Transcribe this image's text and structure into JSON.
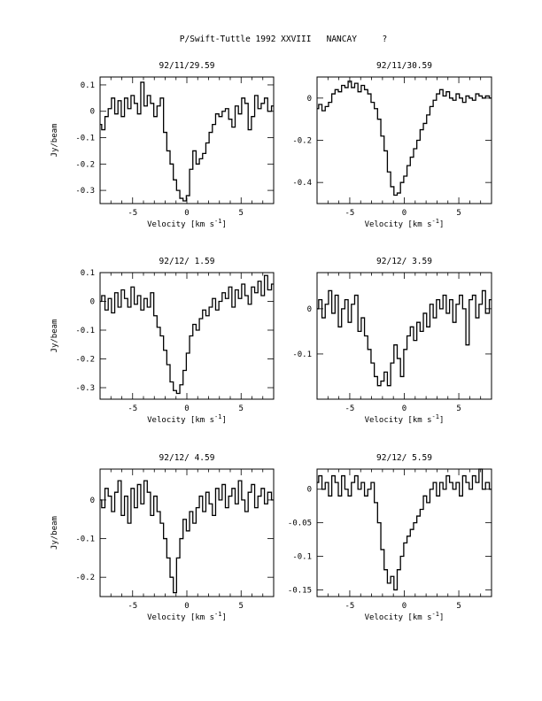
{
  "figure_title": "P/Swift-Tuttle 1992 XXVIII   NANCAY     ?",
  "chart_data": [
    {
      "type": "line",
      "title": "92/11/29.59",
      "xlabel": "Velocity [km s",
      "xlabel_sup": "-1",
      "xlabel_close": "]",
      "ylabel": "Jy/beam",
      "xlim": [
        -8,
        8
      ],
      "ylim": [
        -0.35,
        0.13
      ],
      "xticks": [
        -5,
        0,
        5
      ],
      "yticks": [
        0.1,
        0,
        -0.1,
        -0.2,
        -0.3
      ],
      "yticklabels": [
        "0.1",
        "0",
        "-0.1",
        "-0.2",
        "-0.3"
      ],
      "x": [
        -8.0,
        -7.7,
        -7.4,
        -7.1,
        -6.8,
        -6.5,
        -6.2,
        -5.9,
        -5.6,
        -5.3,
        -5.0,
        -4.7,
        -4.4,
        -4.1,
        -3.8,
        -3.5,
        -3.2,
        -2.9,
        -2.6,
        -2.3,
        -2.0,
        -1.7,
        -1.4,
        -1.1,
        -0.8,
        -0.5,
        -0.2,
        0.1,
        0.4,
        0.7,
        1.0,
        1.3,
        1.6,
        1.9,
        2.2,
        2.5,
        2.8,
        3.1,
        3.4,
        3.7,
        4.0,
        4.3,
        4.6,
        4.9,
        5.2,
        5.5,
        5.8,
        6.1,
        6.4,
        6.7,
        7.0,
        7.3,
        7.6,
        8.0
      ],
      "y": [
        -0.05,
        -0.07,
        -0.02,
        0.01,
        0.05,
        -0.01,
        0.04,
        -0.02,
        0.05,
        0.01,
        0.06,
        0.03,
        -0.01,
        0.11,
        0.02,
        0.06,
        0.03,
        -0.02,
        0.02,
        0.05,
        -0.08,
        -0.15,
        -0.2,
        -0.26,
        -0.3,
        -0.33,
        -0.34,
        -0.32,
        -0.22,
        -0.15,
        -0.2,
        -0.18,
        -0.16,
        -0.12,
        -0.08,
        -0.05,
        -0.01,
        -0.02,
        0.0,
        0.01,
        -0.03,
        -0.06,
        0.02,
        -0.01,
        0.05,
        0.03,
        -0.07,
        -0.02,
        0.06,
        0.01,
        0.03,
        0.05,
        0.0,
        0.02
      ]
    },
    {
      "type": "line",
      "title": "92/11/30.59",
      "xlabel": "Velocity [km s",
      "xlabel_sup": "-1",
      "xlabel_close": "]",
      "ylabel": "",
      "xlim": [
        -8,
        8
      ],
      "ylim": [
        -0.5,
        0.1
      ],
      "xticks": [
        -5,
        0,
        5
      ],
      "yticks": [
        0,
        -0.2,
        -0.4
      ],
      "yticklabels": [
        "0",
        "-0.2",
        "-0.4"
      ],
      "x": [
        -8.0,
        -7.7,
        -7.4,
        -7.1,
        -6.8,
        -6.5,
        -6.2,
        -5.9,
        -5.6,
        -5.3,
        -5.0,
        -4.7,
        -4.4,
        -4.1,
        -3.8,
        -3.5,
        -3.2,
        -2.9,
        -2.6,
        -2.3,
        -2.0,
        -1.7,
        -1.4,
        -1.1,
        -0.8,
        -0.5,
        -0.2,
        0.1,
        0.4,
        0.7,
        1.0,
        1.3,
        1.6,
        1.9,
        2.2,
        2.5,
        2.8,
        3.1,
        3.4,
        3.7,
        4.0,
        4.3,
        4.6,
        4.9,
        5.2,
        5.5,
        5.8,
        6.1,
        6.4,
        6.7,
        7.0,
        7.3,
        7.6,
        8.0
      ],
      "y": [
        -0.05,
        -0.03,
        -0.06,
        -0.04,
        -0.02,
        0.02,
        0.04,
        0.03,
        0.06,
        0.05,
        0.08,
        0.05,
        0.07,
        0.03,
        0.06,
        0.04,
        0.02,
        -0.02,
        -0.05,
        -0.1,
        -0.18,
        -0.25,
        -0.35,
        -0.42,
        -0.46,
        -0.45,
        -0.4,
        -0.37,
        -0.32,
        -0.28,
        -0.24,
        -0.2,
        -0.15,
        -0.12,
        -0.08,
        -0.04,
        -0.01,
        0.02,
        0.04,
        0.01,
        0.03,
        0.0,
        -0.01,
        0.02,
        0.0,
        -0.02,
        0.01,
        0.0,
        -0.01,
        0.02,
        0.01,
        0.0,
        0.01,
        0.0
      ]
    },
    {
      "type": "line",
      "title": "92/12/ 1.59",
      "xlabel": "Velocity [km s",
      "xlabel_sup": "-1",
      "xlabel_close": "]",
      "ylabel": "Jy/beam",
      "xlim": [
        -8,
        8
      ],
      "ylim": [
        -0.34,
        0.1
      ],
      "xticks": [
        -5,
        0,
        5
      ],
      "yticks": [
        0.1,
        0,
        -0.1,
        -0.2,
        -0.3
      ],
      "yticklabels": [
        "0.1",
        "0",
        "-0.1",
        "-0.2",
        "-0.3"
      ],
      "x": [
        -8.0,
        -7.7,
        -7.4,
        -7.1,
        -6.8,
        -6.5,
        -6.2,
        -5.9,
        -5.6,
        -5.3,
        -5.0,
        -4.7,
        -4.4,
        -4.1,
        -3.8,
        -3.5,
        -3.2,
        -2.9,
        -2.6,
        -2.3,
        -2.0,
        -1.7,
        -1.4,
        -1.1,
        -0.8,
        -0.5,
        -0.2,
        0.1,
        0.4,
        0.7,
        1.0,
        1.3,
        1.6,
        1.9,
        2.2,
        2.5,
        2.8,
        3.1,
        3.4,
        3.7,
        4.0,
        4.3,
        4.6,
        4.9,
        5.2,
        5.5,
        5.8,
        6.1,
        6.4,
        6.7,
        7.0,
        7.3,
        7.6,
        8.0
      ],
      "y": [
        0.0,
        0.02,
        -0.03,
        0.01,
        -0.04,
        0.03,
        -0.02,
        0.04,
        0.01,
        -0.02,
        0.05,
        -0.01,
        0.02,
        -0.03,
        0.01,
        -0.02,
        0.03,
        -0.05,
        -0.09,
        -0.12,
        -0.17,
        -0.22,
        -0.28,
        -0.31,
        -0.32,
        -0.29,
        -0.24,
        -0.18,
        -0.12,
        -0.08,
        -0.1,
        -0.06,
        -0.03,
        -0.05,
        -0.02,
        0.01,
        -0.03,
        0.0,
        0.03,
        0.01,
        0.05,
        -0.02,
        0.04,
        0.01,
        0.06,
        0.02,
        -0.01,
        0.05,
        0.03,
        0.07,
        0.02,
        0.09,
        0.04,
        0.06
      ]
    },
    {
      "type": "line",
      "title": "92/12/ 3.59",
      "xlabel": "Velocity [km s",
      "xlabel_sup": "-1",
      "xlabel_close": "]",
      "ylabel": "",
      "xlim": [
        -8,
        8
      ],
      "ylim": [
        -0.2,
        0.08
      ],
      "xticks": [
        -5,
        0,
        5
      ],
      "yticks": [
        0,
        -0.1
      ],
      "yticklabels": [
        "0",
        "-0.1"
      ],
      "x": [
        -8.0,
        -7.7,
        -7.4,
        -7.1,
        -6.8,
        -6.5,
        -6.2,
        -5.9,
        -5.6,
        -5.3,
        -5.0,
        -4.7,
        -4.4,
        -4.1,
        -3.8,
        -3.5,
        -3.2,
        -2.9,
        -2.6,
        -2.3,
        -2.0,
        -1.7,
        -1.4,
        -1.1,
        -0.8,
        -0.5,
        -0.2,
        0.1,
        0.4,
        0.7,
        1.0,
        1.3,
        1.6,
        1.9,
        2.2,
        2.5,
        2.8,
        3.1,
        3.4,
        3.7,
        4.0,
        4.3,
        4.6,
        4.9,
        5.2,
        5.5,
        5.8,
        6.1,
        6.4,
        6.7,
        7.0,
        7.3,
        7.6,
        8.0
      ],
      "y": [
        0.0,
        0.02,
        -0.02,
        0.01,
        0.04,
        -0.01,
        0.03,
        -0.04,
        0.0,
        0.02,
        -0.03,
        0.01,
        0.03,
        -0.05,
        -0.02,
        -0.06,
        -0.09,
        -0.12,
        -0.15,
        -0.17,
        -0.16,
        -0.14,
        -0.17,
        -0.12,
        -0.08,
        -0.11,
        -0.15,
        -0.09,
        -0.06,
        -0.04,
        -0.07,
        -0.03,
        -0.05,
        -0.01,
        -0.04,
        0.01,
        -0.02,
        0.02,
        0.0,
        0.03,
        -0.01,
        0.02,
        -0.03,
        0.01,
        0.03,
        0.0,
        -0.08,
        0.02,
        0.03,
        -0.02,
        0.01,
        0.04,
        -0.01,
        0.02
      ]
    },
    {
      "type": "line",
      "title": "92/12/ 4.59",
      "xlabel": "Velocity [km s",
      "xlabel_sup": "-1",
      "xlabel_close": "]",
      "ylabel": "Jy/beam",
      "xlim": [
        -8,
        8
      ],
      "ylim": [
        -0.25,
        0.08
      ],
      "xticks": [
        -5,
        0,
        5
      ],
      "yticks": [
        0,
        -0.1,
        -0.2
      ],
      "yticklabels": [
        "0",
        "-0.1",
        "-0.2"
      ],
      "x": [
        -8.0,
        -7.7,
        -7.4,
        -7.1,
        -6.8,
        -6.5,
        -6.2,
        -5.9,
        -5.6,
        -5.3,
        -5.0,
        -4.7,
        -4.4,
        -4.1,
        -3.8,
        -3.5,
        -3.2,
        -2.9,
        -2.6,
        -2.3,
        -2.0,
        -1.7,
        -1.4,
        -1.1,
        -0.8,
        -0.5,
        -0.2,
        0.1,
        0.4,
        0.7,
        1.0,
        1.3,
        1.6,
        1.9,
        2.2,
        2.5,
        2.8,
        3.1,
        3.4,
        3.7,
        4.0,
        4.3,
        4.6,
        4.9,
        5.2,
        5.5,
        5.8,
        6.1,
        6.4,
        6.7,
        7.0,
        7.3,
        7.6,
        8.0
      ],
      "y": [
        0.0,
        -0.02,
        0.03,
        0.01,
        -0.03,
        0.02,
        0.05,
        -0.04,
        0.01,
        -0.06,
        0.03,
        -0.02,
        0.04,
        -0.01,
        0.05,
        0.02,
        -0.04,
        0.01,
        -0.03,
        -0.06,
        -0.1,
        -0.15,
        -0.2,
        -0.24,
        -0.15,
        -0.1,
        -0.05,
        -0.08,
        -0.03,
        -0.06,
        -0.02,
        0.01,
        -0.03,
        0.02,
        -0.01,
        -0.04,
        0.03,
        0.0,
        0.04,
        -0.02,
        0.01,
        0.03,
        -0.01,
        0.05,
        0.0,
        -0.03,
        0.02,
        0.04,
        -0.02,
        0.01,
        0.03,
        -0.01,
        0.02,
        0.0
      ]
    },
    {
      "type": "line",
      "title": "92/12/ 5.59",
      "xlabel": "Velocity [km s",
      "xlabel_sup": "-1",
      "xlabel_close": "]",
      "ylabel": "",
      "xlim": [
        -8,
        8
      ],
      "ylim": [
        -0.16,
        0.03
      ],
      "xticks": [
        -5,
        0,
        5
      ],
      "yticks": [
        0,
        -0.05,
        -0.1,
        -0.15
      ],
      "yticklabels": [
        "0",
        "-0.05",
        "-0.1",
        "-0.15"
      ],
      "x": [
        -8.0,
        -7.7,
        -7.4,
        -7.1,
        -6.8,
        -6.5,
        -6.2,
        -5.9,
        -5.6,
        -5.3,
        -5.0,
        -4.7,
        -4.4,
        -4.1,
        -3.8,
        -3.5,
        -3.2,
        -2.9,
        -2.6,
        -2.3,
        -2.0,
        -1.7,
        -1.4,
        -1.1,
        -0.8,
        -0.5,
        -0.2,
        0.1,
        0.4,
        0.7,
        1.0,
        1.3,
        1.6,
        1.9,
        2.2,
        2.5,
        2.8,
        3.1,
        3.4,
        3.7,
        4.0,
        4.3,
        4.6,
        4.9,
        5.2,
        5.5,
        5.8,
        6.1,
        6.4,
        6.7,
        7.0,
        7.3,
        7.6,
        8.0
      ],
      "y": [
        0.01,
        0.02,
        0.0,
        0.01,
        -0.01,
        0.02,
        0.01,
        -0.01,
        0.02,
        0.0,
        -0.01,
        0.01,
        0.02,
        0.0,
        0.01,
        -0.01,
        0.0,
        0.01,
        -0.02,
        -0.05,
        -0.09,
        -0.12,
        -0.14,
        -0.13,
        -0.15,
        -0.12,
        -0.1,
        -0.08,
        -0.07,
        -0.06,
        -0.05,
        -0.04,
        -0.03,
        -0.01,
        -0.02,
        0.0,
        0.01,
        -0.01,
        0.01,
        0.0,
        0.02,
        0.01,
        0.0,
        0.01,
        -0.01,
        0.02,
        0.01,
        0.0,
        0.02,
        0.01,
        0.03,
        0.0,
        0.01,
        0.0
      ]
    }
  ]
}
